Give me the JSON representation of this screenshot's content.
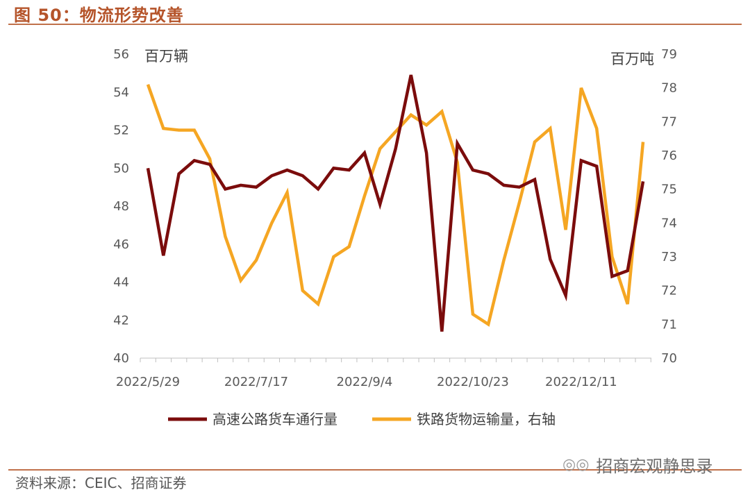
{
  "figure_title": "图 50：物流形势改善",
  "source": "资料来源：CEIC、招商证券",
  "watermark": "招商宏观静思录",
  "colors": {
    "highway": "#7b0c0c",
    "rail": "#f5a623",
    "accent": "#b5542a"
  },
  "chart_data": {
    "type": "line",
    "x_tick_labels": [
      "2022/5/29",
      "2022/7/17",
      "2022/9/4",
      "2022/10/23",
      "2022/12/11"
    ],
    "y_left": {
      "unit": "百万辆",
      "ticks": [
        40,
        42,
        44,
        46,
        48,
        50,
        52,
        54,
        56
      ],
      "ylim": [
        40,
        56
      ]
    },
    "y_right": {
      "unit": "百万吨",
      "ticks": [
        70,
        71,
        72,
        73,
        74,
        75,
        76,
        77,
        78,
        79
      ],
      "ylim": [
        70,
        79
      ]
    },
    "legend_position": "bottom",
    "series": [
      {
        "name": "高速公路货车通行量",
        "axis": "left",
        "values": [
          50.0,
          45.4,
          49.7,
          50.4,
          50.2,
          48.9,
          49.1,
          49.0,
          49.6,
          49.9,
          49.6,
          48.9,
          50.0,
          49.9,
          50.8,
          48.1,
          51.0,
          54.9,
          50.8,
          41.4,
          51.3,
          49.9,
          49.7,
          49.1,
          49.0,
          49.4,
          45.2,
          43.3,
          50.4,
          50.1,
          44.3,
          44.6,
          49.3
        ]
      },
      {
        "name": "铁路货物运输量，右轴",
        "axis": "right",
        "values": [
          78.1,
          76.8,
          76.75,
          76.75,
          75.9,
          73.6,
          72.3,
          72.9,
          74.0,
          74.9,
          72.0,
          71.6,
          73.0,
          73.3,
          74.8,
          76.2,
          76.7,
          77.2,
          76.9,
          77.3,
          75.8,
          71.3,
          71.0,
          72.9,
          74.6,
          76.4,
          76.8,
          73.8,
          78.0,
          76.8,
          73.0,
          71.6,
          76.4
        ]
      }
    ]
  }
}
